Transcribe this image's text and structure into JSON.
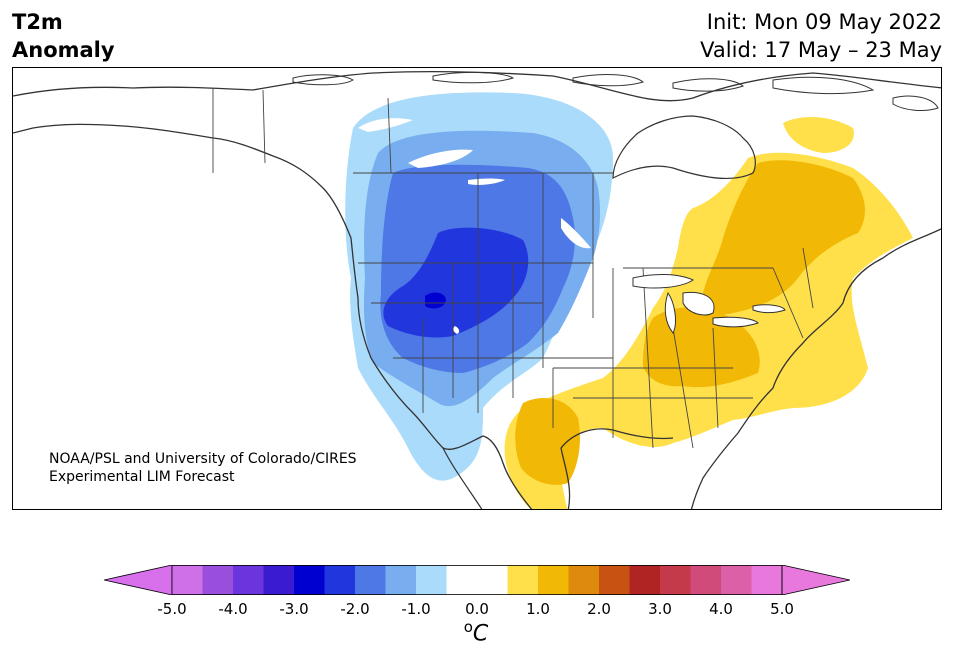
{
  "title": {
    "line1": "T2m",
    "line2": "Anomaly"
  },
  "header_right": {
    "init": "Init: Mon 09 May 2022",
    "valid": "Valid: 17 May – 23 May"
  },
  "credit": {
    "line1": "NOAA/PSL and University of Colorado/CIRES",
    "line2": "Experimental LIM Forecast"
  },
  "colorbar": {
    "ticks": [
      "-5.0",
      "-4.0",
      "-3.0",
      "-2.0",
      "-1.0",
      "0.0",
      "1.0",
      "2.0",
      "3.0",
      "4.0",
      "5.0"
    ],
    "tick_values": [
      -5,
      -4,
      -3,
      -2,
      -1,
      0,
      1,
      2,
      3,
      4,
      5
    ],
    "unit_base": "C",
    "unit_super": "o",
    "colors": [
      "#d070e8",
      "#9a4fdc",
      "#6a35dc",
      "#3a1bd0",
      "#0000d0",
      "#2236de",
      "#4d78e6",
      "#78aef0",
      "#aadbfa",
      "#ffffff",
      "#ffffff",
      "#ffe04a",
      "#f2b806",
      "#de8a0c",
      "#c85212",
      "#b02424",
      "#c43a4a",
      "#d04a7a",
      "#dc60a8",
      "#e878dc"
    ],
    "extend_min_color": "#d870ec",
    "extend_max_color": "#e878dc"
  },
  "map": {
    "region": "North America",
    "variable": "2-meter temperature anomaly",
    "colors": {
      "cold_1": "#aadbfa",
      "cold_2": "#78aef0",
      "cold_3": "#4d78e6",
      "cold_4": "#2236de",
      "cold_5": "#0000d0",
      "warm_1": "#ffe04a",
      "warm_2": "#f2b806",
      "coast": "#333333",
      "border": "#444444"
    }
  }
}
